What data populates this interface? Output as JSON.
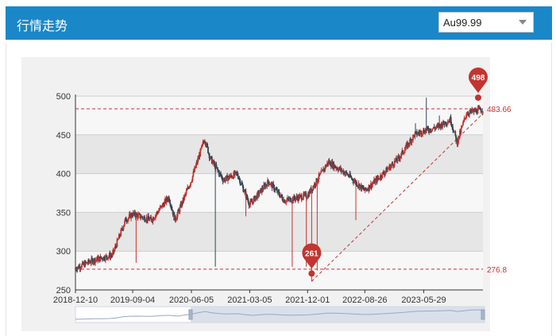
{
  "header": {
    "title": "行情走势"
  },
  "selector": {
    "value": "Au99.99"
  },
  "chart_data": {
    "type": "candlestick",
    "x_ticks": [
      "2018-12-10",
      "2019-09-04",
      "2020-06-05",
      "2021-03-05",
      "2021-12-01",
      "2022-08-26",
      "2023-05-29"
    ],
    "y_ticks": [
      250,
      300,
      350,
      400,
      450,
      500
    ],
    "ylim": [
      250,
      500
    ],
    "grid": true,
    "mark_points": {
      "max": {
        "label": "498",
        "value": 498
      },
      "min": {
        "label": "261",
        "value": 261
      }
    },
    "mark_lines": [
      {
        "label": "483.66",
        "value": 483.66
      },
      {
        "label": "276.8",
        "value": 276.8
      }
    ],
    "trend_anchors": [
      {
        "date": "2018-12-10",
        "close": 278
      },
      {
        "date": "2019-03-01",
        "close": 288
      },
      {
        "date": "2019-06-01",
        "close": 295
      },
      {
        "date": "2019-08-01",
        "close": 340
      },
      {
        "date": "2019-09-04",
        "close": 348
      },
      {
        "date": "2019-12-01",
        "close": 340
      },
      {
        "date": "2020-02-20",
        "close": 370
      },
      {
        "date": "2020-03-20",
        "close": 340
      },
      {
        "date": "2020-06-05",
        "close": 392
      },
      {
        "date": "2020-08-06",
        "close": 445
      },
      {
        "date": "2020-09-01",
        "close": 420
      },
      {
        "date": "2020-11-01",
        "close": 392
      },
      {
        "date": "2021-01-05",
        "close": 400
      },
      {
        "date": "2021-03-05",
        "close": 360
      },
      {
        "date": "2021-06-01",
        "close": 390
      },
      {
        "date": "2021-08-15",
        "close": 365
      },
      {
        "date": "2021-12-01",
        "close": 372
      },
      {
        "date": "2022-03-08",
        "close": 415
      },
      {
        "date": "2022-06-01",
        "close": 400
      },
      {
        "date": "2022-08-26",
        "close": 378
      },
      {
        "date": "2022-11-01",
        "close": 395
      },
      {
        "date": "2023-02-01",
        "close": 420
      },
      {
        "date": "2023-04-15",
        "close": 450
      },
      {
        "date": "2023-05-29",
        "close": 455
      },
      {
        "date": "2023-08-01",
        "close": 460
      },
      {
        "date": "2023-10-01",
        "close": 470
      },
      {
        "date": "2023-11-01",
        "close": 440
      },
      {
        "date": "2023-12-15",
        "close": 478
      },
      {
        "date": "2024-03-01",
        "close": 483
      }
    ],
    "spikes": [
      {
        "date": "2019-09-20",
        "low": 285
      },
      {
        "date": "2020-09-25",
        "low": 280
      },
      {
        "date": "2021-02-15",
        "low": 345
      },
      {
        "date": "2021-09-20",
        "low": 280
      },
      {
        "date": "2021-11-25",
        "low": 280
      },
      {
        "date": "2021-12-20",
        "low": 261
      },
      {
        "date": "2022-01-15",
        "low": 275
      },
      {
        "date": "2022-07-15",
        "low": 340
      },
      {
        "date": "2023-06-10",
        "high": 498
      },
      {
        "date": "2023-04-20",
        "high": 465
      },
      {
        "date": "2023-08-10",
        "high": 475
      }
    ],
    "series_colors": {
      "up": "#c23531",
      "down": "#2f4554"
    }
  }
}
